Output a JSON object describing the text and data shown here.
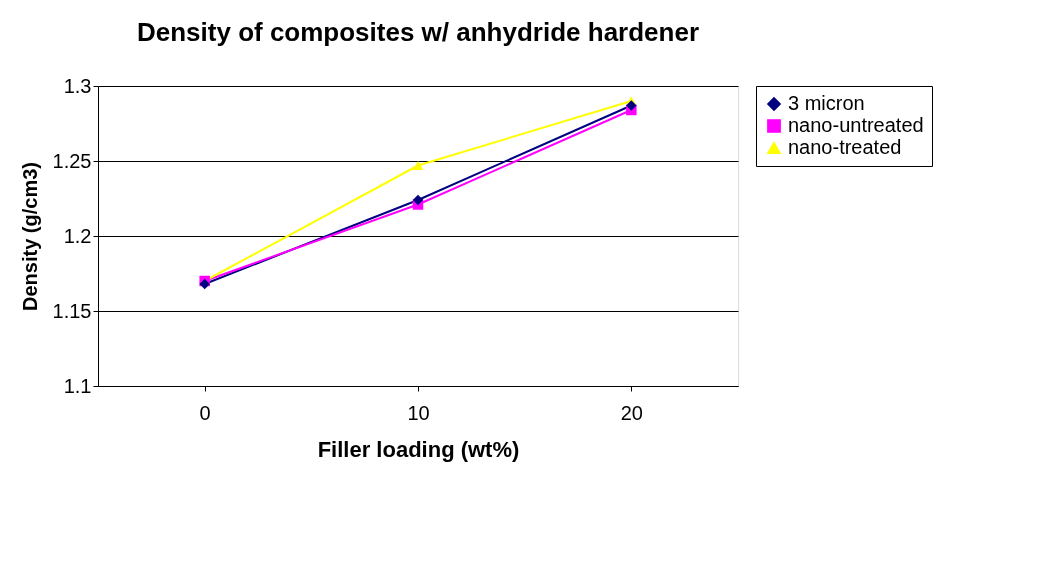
{
  "chart_data": {
    "type": "line",
    "title": "Density of composites w/ anhydride hardener",
    "xlabel": "Filler loading (wt%)",
    "ylabel": "Density (g/cm3)",
    "categories": [
      "0",
      "10",
      "20"
    ],
    "series": [
      {
        "name": "3 micron",
        "color": "#000080",
        "marker": "diamond",
        "values": [
          1.168,
          1.224,
          1.287
        ]
      },
      {
        "name": "nano-untreated",
        "color": "#ff00ff",
        "marker": "square",
        "values": [
          1.17,
          1.221,
          1.284
        ]
      },
      {
        "name": "nano-treated",
        "color": "#ffff00",
        "marker": "triangle",
        "values": [
          1.17,
          1.247,
          1.29
        ]
      }
    ],
    "ylim": [
      1.1,
      1.3
    ],
    "yticks": [
      1.1,
      1.15,
      1.2,
      1.25,
      1.3
    ],
    "grid": "y",
    "legend": "right"
  }
}
